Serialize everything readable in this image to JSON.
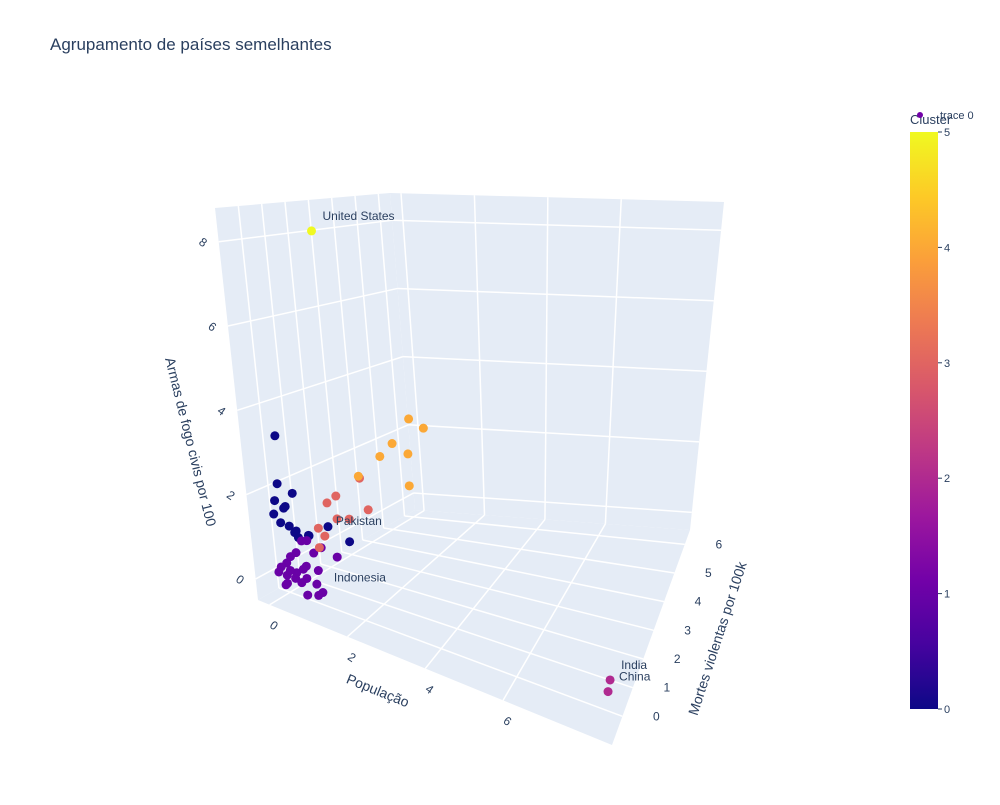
{
  "chart_data": {
    "type": "scatter3d",
    "title": "Agrupamento de países semelhantes",
    "xlabel": "População",
    "ylabel": "Mortes violentas por 100k",
    "zlabel": "Armas de fogo civis por 100",
    "xlim": [
      -0.3,
      8.8
    ],
    "ylim": [
      -1,
      6.5
    ],
    "zlim": [
      -0.5,
      8.8
    ],
    "xticks": [
      0,
      2,
      4,
      6
    ],
    "yticks": [
      0,
      1,
      2,
      3,
      4,
      5,
      6
    ],
    "zticks": [
      0,
      2,
      4,
      6,
      8
    ],
    "colorbar": {
      "title": "Cluster",
      "clim": [
        0,
        5
      ],
      "ticks": [
        0,
        1,
        2,
        3,
        4,
        5
      ]
    },
    "colorscale": [
      "#0d0887",
      "#46039f",
      "#7201a8",
      "#9c179e",
      "#bd3786",
      "#d8576b",
      "#ed7953",
      "#fb9f3a",
      "#fdca26",
      "#f0f921"
    ],
    "grid": true,
    "background": "#e5ecf6",
    "series": [
      {
        "name": "trace 0",
        "x": [
          0,
          0.05,
          0.3,
          0,
          0.1,
          0,
          0.2,
          0.1,
          0.2,
          0.3,
          0.1,
          0.4,
          0.6,
          0.2,
          0.7,
          0.3,
          0,
          0.1,
          0.2,
          0.3,
          0.4,
          0.1,
          0.2,
          0.5,
          0.6,
          0.3,
          0,
          0.2,
          0.4,
          0.7,
          0.5,
          0.8,
          0.3,
          0.1,
          0.6,
          0.9,
          1.0,
          1.1,
          0.7,
          0.2,
          0.4,
          8.5,
          8.5,
          0.2,
          0.4,
          0.1,
          0.3,
          0.2,
          0.5,
          0.7,
          0.4,
          0.1,
          0.3,
          0.2,
          0.5,
          0.1,
          0.3,
          0.6,
          0,
          1.0
        ],
        "y": [
          0,
          -0.2,
          0,
          -0.3,
          -0.1,
          -0.4,
          -0.2,
          -0.3,
          0.2,
          0.1,
          0.3,
          0.4,
          1.0,
          -0.1,
          1.8,
          0.6,
          -0.3,
          -0.2,
          -0.4,
          -0.2,
          -0.3,
          0,
          0.1,
          0,
          -0.2,
          0.2,
          0.1,
          -0.5,
          -0.1,
          0.2,
          0.4,
          -0.1,
          -0.6,
          -0.6,
          0.6,
          0.8,
          -0.2,
          -0.6,
          -0.4,
          0.4,
          0.3,
          -0.7,
          -0.6,
          1.5,
          1.8,
          1.9,
          2.0,
          1.2,
          2.2,
          2.8,
          3.0,
          1.4,
          5.5,
          5.8,
          6.0,
          4.5,
          4.8,
          5.0,
          3.6,
          0.5
        ],
        "z": [
          3.3,
          2.2,
          2.0,
          1.8,
          1.6,
          1.5,
          1.7,
          1.3,
          1.0,
          0.9,
          0.9,
          0.9,
          1.0,
          1.2,
          0.4,
          0.8,
          0.2,
          0.3,
          0.1,
          0,
          0.2,
          0.4,
          0.5,
          0.3,
          0.1,
          0.1,
          0,
          -0.1,
          -0.1,
          0.2,
          0.5,
          0,
          0,
          0.2,
          0.6,
          0.4,
          -0.1,
          0,
          -0.2,
          0.7,
          0.8,
          0.4,
          0.6,
          0.5,
          0.9,
          1.2,
          1.4,
          0.3,
          0.8,
          0.9,
          1.6,
          0.7,
          1.5,
          2.4,
          2.1,
          1.7,
          2.0,
          0.8,
          1.4,
          8.5
        ],
        "cluster": [
          0,
          0,
          0,
          0,
          0,
          0,
          0,
          0,
          0,
          0,
          0,
          0,
          0,
          0,
          0,
          0,
          1,
          1,
          1,
          1,
          1,
          1,
          1,
          1,
          1,
          1,
          1,
          1,
          1,
          1,
          1,
          1,
          1,
          1,
          1,
          1,
          1,
          1,
          1,
          1,
          1,
          2,
          2,
          3,
          3,
          3,
          3,
          3,
          3,
          3,
          3,
          3,
          4,
          4,
          4,
          4,
          4,
          4,
          4,
          5
        ],
        "text": [
          null,
          null,
          null,
          null,
          null,
          null,
          null,
          null,
          null,
          null,
          null,
          null,
          null,
          null,
          null,
          null,
          null,
          null,
          null,
          null,
          null,
          null,
          null,
          null,
          null,
          null,
          null,
          null,
          null,
          null,
          null,
          null,
          null,
          null,
          null,
          null,
          "Indonesia",
          null,
          null,
          null,
          null,
          "China",
          "India",
          "Pakistan",
          null,
          null,
          null,
          null,
          null,
          null,
          null,
          null,
          null,
          null,
          null,
          null,
          null,
          null,
          null,
          "United States"
        ]
      }
    ]
  }
}
